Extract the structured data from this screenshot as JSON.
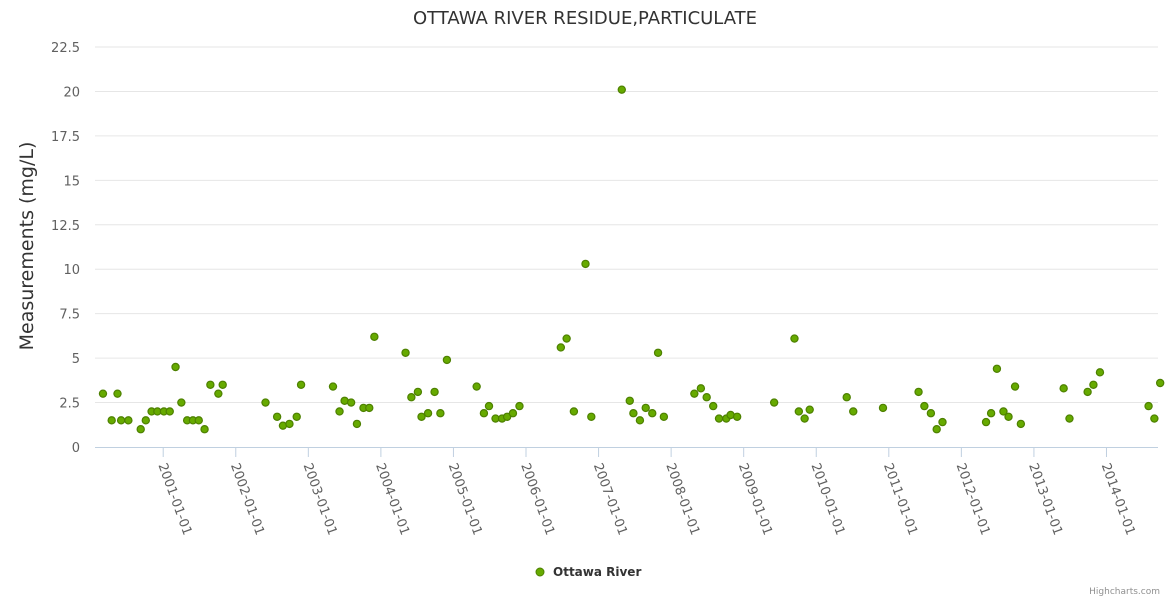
{
  "chart_data": {
    "type": "scatter",
    "title": "OTTAWA RIVER RESIDUE,PARTICULATE",
    "ylabel": "Measurements (mg/L)",
    "xlabel": "",
    "ylim": [
      0,
      22.5
    ],
    "yticks": [
      "0",
      "2.5",
      "5",
      "7.5",
      "10",
      "12.5",
      "15",
      "17.5",
      "20",
      "22.5"
    ],
    "xlim": [
      2000.06,
      2014.71
    ],
    "xticks": [
      "2001-01-01",
      "2002-01-01",
      "2003-01-01",
      "2004-01-01",
      "2005-01-01",
      "2006-01-01",
      "2007-01-01",
      "2008-01-01",
      "2009-01-01",
      "2010-01-01",
      "2011-01-01",
      "2012-01-01",
      "2013-01-01",
      "2014-01-01"
    ],
    "legend": "bottom-center",
    "grid": true,
    "series": [
      {
        "name": "Ottawa River",
        "color": "#66aa00",
        "points": [
          [
            2000.17,
            3.0
          ],
          [
            2000.29,
            1.5
          ],
          [
            2000.37,
            3.0
          ],
          [
            2000.42,
            1.5
          ],
          [
            2000.52,
            1.5
          ],
          [
            2000.69,
            1.0
          ],
          [
            2000.76,
            1.5
          ],
          [
            2000.84,
            2.0
          ],
          [
            2000.92,
            2.0
          ],
          [
            2001.01,
            2.0
          ],
          [
            2001.09,
            2.0
          ],
          [
            2001.17,
            4.5
          ],
          [
            2001.25,
            2.5
          ],
          [
            2001.33,
            1.5
          ],
          [
            2001.41,
            1.5
          ],
          [
            2001.49,
            1.5
          ],
          [
            2001.57,
            1.0
          ],
          [
            2001.65,
            3.5
          ],
          [
            2001.76,
            3.0
          ],
          [
            2001.82,
            3.5
          ],
          [
            2002.41,
            2.5
          ],
          [
            2002.57,
            1.7
          ],
          [
            2002.65,
            1.2
          ],
          [
            2002.74,
            1.3
          ],
          [
            2002.84,
            1.7
          ],
          [
            2002.9,
            3.5
          ],
          [
            2003.34,
            3.4
          ],
          [
            2003.43,
            2.0
          ],
          [
            2003.5,
            2.6
          ],
          [
            2003.59,
            2.5
          ],
          [
            2003.67,
            1.3
          ],
          [
            2003.76,
            2.2
          ],
          [
            2003.84,
            2.2
          ],
          [
            2003.91,
            6.2
          ],
          [
            2004.34,
            5.3
          ],
          [
            2004.42,
            2.8
          ],
          [
            2004.51,
            3.1
          ],
          [
            2004.56,
            1.7
          ],
          [
            2004.65,
            1.9
          ],
          [
            2004.74,
            3.1
          ],
          [
            2004.82,
            1.9
          ],
          [
            2004.91,
            4.9
          ],
          [
            2005.32,
            3.4
          ],
          [
            2005.42,
            1.9
          ],
          [
            2005.49,
            2.3
          ],
          [
            2005.58,
            1.6
          ],
          [
            2005.67,
            1.6
          ],
          [
            2005.74,
            1.7
          ],
          [
            2005.82,
            1.9
          ],
          [
            2005.91,
            2.3
          ],
          [
            2006.48,
            5.6
          ],
          [
            2006.56,
            6.1
          ],
          [
            2006.66,
            2.0
          ],
          [
            2006.82,
            10.3
          ],
          [
            2006.9,
            1.7
          ],
          [
            2007.32,
            20.1
          ],
          [
            2007.43,
            2.6
          ],
          [
            2007.48,
            1.9
          ],
          [
            2007.57,
            1.5
          ],
          [
            2007.65,
            2.2
          ],
          [
            2007.74,
            1.9
          ],
          [
            2007.82,
            5.3
          ],
          [
            2007.9,
            1.7
          ],
          [
            2008.32,
            3.0
          ],
          [
            2008.41,
            3.3
          ],
          [
            2008.49,
            2.8
          ],
          [
            2008.58,
            2.3
          ],
          [
            2008.66,
            1.6
          ],
          [
            2008.76,
            1.6
          ],
          [
            2008.82,
            1.8
          ],
          [
            2008.91,
            1.7
          ],
          [
            2009.42,
            2.5
          ],
          [
            2009.7,
            6.1
          ],
          [
            2009.76,
            2.0
          ],
          [
            2009.84,
            1.6
          ],
          [
            2009.91,
            2.1
          ],
          [
            2010.42,
            2.8
          ],
          [
            2010.51,
            2.0
          ],
          [
            2010.92,
            2.2
          ],
          [
            2011.41,
            3.1
          ],
          [
            2011.49,
            2.3
          ],
          [
            2011.58,
            1.9
          ],
          [
            2011.66,
            1.0
          ],
          [
            2011.74,
            1.4
          ],
          [
            2012.34,
            1.4
          ],
          [
            2012.41,
            1.9
          ],
          [
            2012.49,
            4.4
          ],
          [
            2012.58,
            2.0
          ],
          [
            2012.65,
            1.7
          ],
          [
            2012.74,
            3.4
          ],
          [
            2012.82,
            1.3
          ],
          [
            2013.41,
            3.3
          ],
          [
            2013.49,
            1.6
          ],
          [
            2013.74,
            3.1
          ],
          [
            2013.82,
            3.5
          ],
          [
            2013.91,
            4.2
          ],
          [
            2014.58,
            2.3
          ],
          [
            2014.66,
            1.6
          ],
          [
            2014.74,
            3.6
          ]
        ]
      }
    ]
  },
  "credits": "Highcharts.com"
}
